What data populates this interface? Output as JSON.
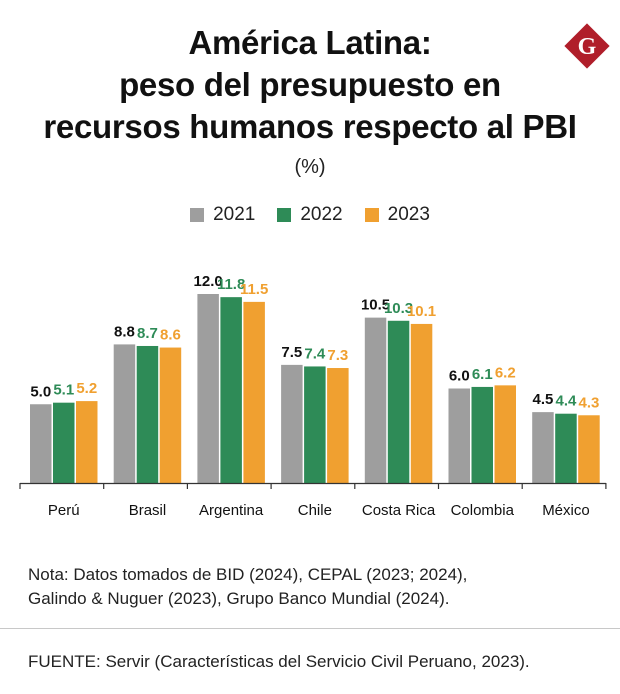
{
  "header": {
    "title_lines": [
      "América Latina:",
      "peso del presupuesto en",
      "recursos humanos respecto al PBI"
    ],
    "unit": "(%)",
    "logo_letter": "G"
  },
  "colors": {
    "s2021": "#9e9e9e",
    "s2022": "#2e8b57",
    "s2023": "#f0a030",
    "axis": "#333333",
    "logo": "#b01e2a"
  },
  "chart_data": {
    "type": "bar",
    "title": "América Latina: peso del presupuesto en recursos humanos respecto al PBI",
    "subtitle": "(%)",
    "categories": [
      "Perú",
      "Brasil",
      "Argentina",
      "Chile",
      "Costa Rica",
      "Colombia",
      "México"
    ],
    "series": [
      {
        "name": "2021",
        "values": [
          5.0,
          8.8,
          12.0,
          7.5,
          10.5,
          6.0,
          4.5
        ],
        "labels": [
          "5.0",
          "8.8",
          "12.0",
          "7.5",
          "10.5",
          "6.0",
          "4.5"
        ]
      },
      {
        "name": "2022",
        "values": [
          5.1,
          8.7,
          11.8,
          7.4,
          10.3,
          6.1,
          4.4
        ],
        "labels": [
          "5.1",
          "8.7",
          "11.8",
          "7.4",
          "10.3",
          "6.1",
          "4.4"
        ]
      },
      {
        "name": "2023",
        "values": [
          5.2,
          8.6,
          11.5,
          7.3,
          10.1,
          6.2,
          4.3
        ],
        "labels": [
          "5.2",
          "8.6",
          "11.5",
          "7.3",
          "10.1",
          "6.2",
          "4.3"
        ]
      }
    ],
    "ylim": [
      0,
      12
    ],
    "legend": "top-center",
    "grid": false,
    "xlabel": "",
    "ylabel": ""
  },
  "footer": {
    "note_lines": [
      "Nota: Datos tomados de BID (2024), CEPAL (2023; 2024),",
      "Galindo & Nuguer (2023), Grupo Banco Mundial (2024)."
    ],
    "source": "FUENTE: Servir (Características del Servicio Civil Peruano, 2023)."
  }
}
